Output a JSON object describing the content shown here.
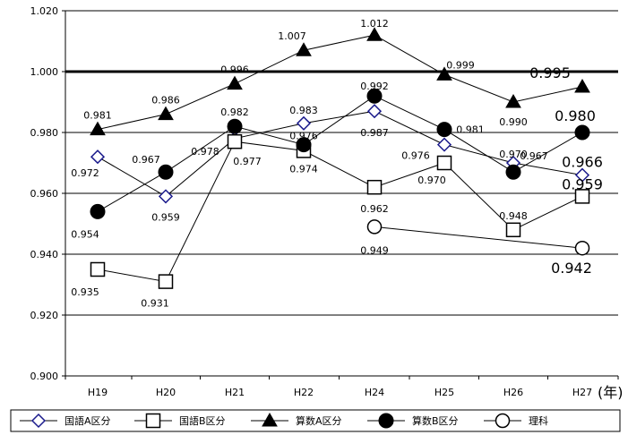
{
  "chart_data": {
    "type": "line",
    "categories": [
      "H19",
      "H20",
      "H21",
      "H22",
      "H24",
      "H25",
      "H26",
      "H27"
    ],
    "xunit": "(年)",
    "ylim": [
      0.9,
      1.02
    ],
    "yticks": [
      "0.900",
      "0.920",
      "0.940",
      "0.960",
      "0.980",
      "1.000",
      "1.020"
    ],
    "reference_line": 1.0,
    "grid": true,
    "legend_position": "bottom",
    "series": [
      {
        "name": "国語A区分",
        "marker": "diamond-open",
        "values": [
          0.972,
          0.959,
          0.978,
          0.983,
          0.987,
          0.976,
          0.97,
          0.966
        ],
        "labels": [
          "0.972",
          "0.959",
          "0.978",
          "0.983",
          "0.987",
          "0.976",
          "0.970",
          "0.966"
        ]
      },
      {
        "name": "国語B区分",
        "marker": "square-open",
        "values": [
          0.935,
          0.931,
          0.977,
          0.974,
          0.962,
          0.97,
          0.948,
          0.959
        ],
        "labels": [
          "0.935",
          "0.931",
          "0.977",
          "0.974",
          "0.962",
          "0.970",
          "0.948",
          "0.959"
        ]
      },
      {
        "name": "算数A区分",
        "marker": "triangle-filled",
        "values": [
          0.981,
          0.986,
          0.996,
          1.007,
          1.012,
          0.999,
          0.99,
          0.995
        ],
        "labels": [
          "0.981",
          "0.986",
          "0.996",
          "1.007",
          "1.012",
          "0.999",
          "0.990",
          "0.995"
        ]
      },
      {
        "name": "算数B区分",
        "marker": "circle-filled",
        "values": [
          0.954,
          0.967,
          0.982,
          0.976,
          0.992,
          0.981,
          0.967,
          0.98
        ],
        "labels": [
          "0.954",
          "0.967",
          "0.982",
          "0.976",
          "0.992",
          "0.981",
          "0.967",
          "0.980"
        ]
      },
      {
        "name": "理科",
        "marker": "circle-open",
        "values": [
          null,
          null,
          null,
          null,
          0.949,
          null,
          null,
          0.942
        ],
        "labels": [
          null,
          null,
          null,
          null,
          "0.949",
          null,
          null,
          "0.942"
        ]
      }
    ]
  }
}
